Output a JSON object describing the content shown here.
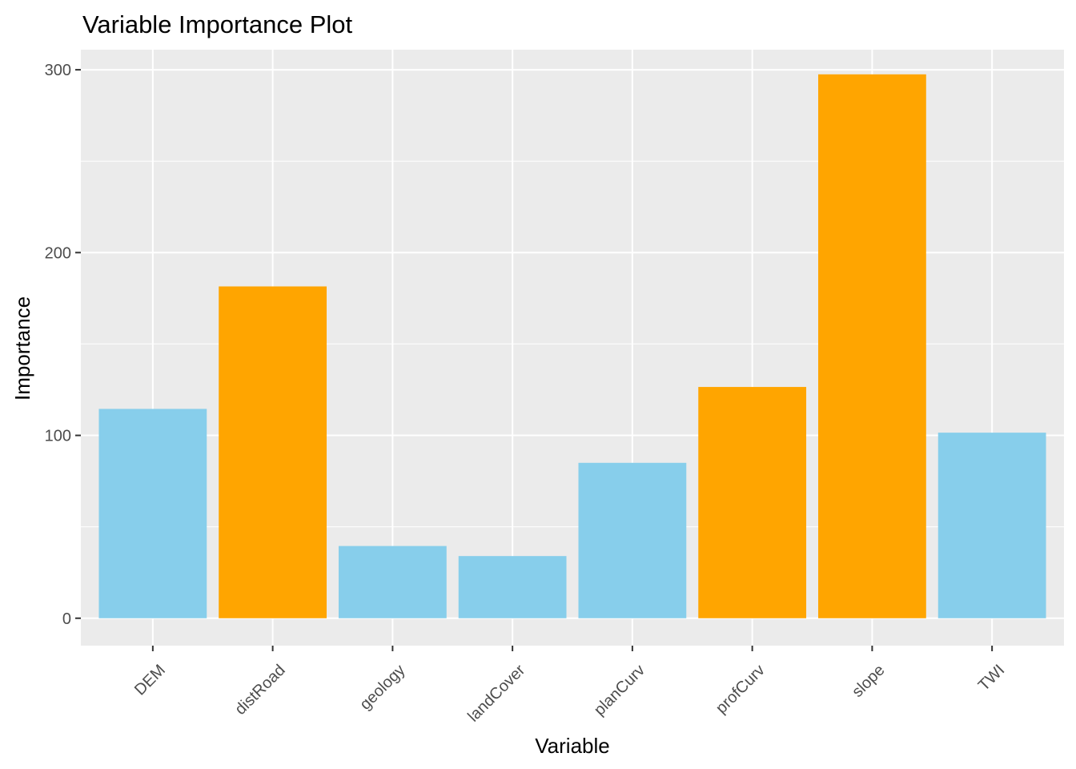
{
  "chart_data": {
    "type": "bar",
    "title": "Variable Importance Plot",
    "xlabel": "Variable",
    "ylabel": "Importance",
    "categories": [
      "DEM",
      "distRoad",
      "geology",
      "landCover",
      "planCurv",
      "profCurv",
      "slope",
      "TWI"
    ],
    "values": [
      114.5,
      181.5,
      39.5,
      34,
      85,
      126.5,
      297.5,
      101.5
    ],
    "highlighted": [
      false,
      true,
      false,
      false,
      false,
      true,
      true,
      false
    ],
    "ylim": [
      -15,
      311
    ],
    "yticks": [
      0,
      100,
      200,
      300
    ],
    "y_minor_ticks": [
      50,
      150,
      250
    ],
    "grid": true,
    "legend": "none",
    "colors": {
      "default_bar": "#87CEEB",
      "highlight_bar": "#FFA500",
      "panel_background": "#EBEBEB",
      "grid": "#FFFFFF",
      "tick_label": "#4D4D4D",
      "tick_mark": "#333333"
    }
  }
}
